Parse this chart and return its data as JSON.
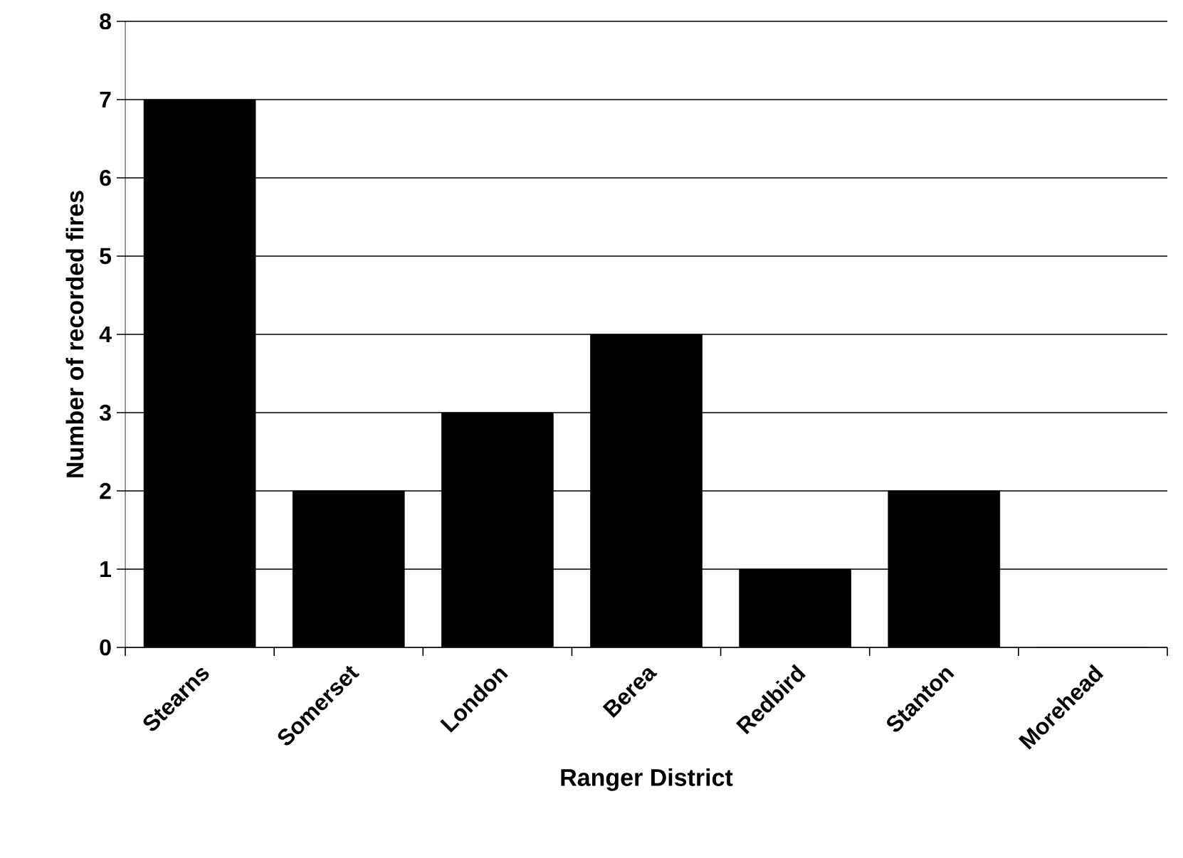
{
  "chart_data": {
    "type": "bar",
    "xlabel": "Ranger District",
    "ylabel": "Number of recorded fires",
    "categories": [
      "Stearns",
      "Somerset",
      "London",
      "Berea",
      "Redbird",
      "Stanton",
      "Morehead"
    ],
    "values": [
      7,
      2,
      3,
      4,
      1,
      2,
      0
    ],
    "color": "#000000",
    "ylim": [
      0,
      8
    ],
    "yticks": [
      0,
      1,
      2,
      3,
      4,
      5,
      6,
      7,
      8
    ],
    "grid": "y"
  }
}
